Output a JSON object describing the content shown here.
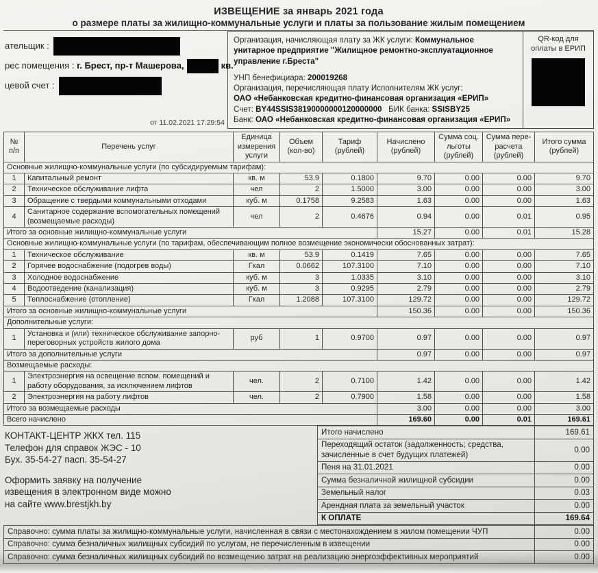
{
  "header": {
    "title_line1": "ИЗВЕЩЕНИЕ за январь 2021 года",
    "title_line2": "о размере платы за  жилищно-коммунальные услуги и платы за пользование жилым помещением"
  },
  "payer": {
    "payer_label": "ательщик :",
    "address_label": "рес помещения : ",
    "address_value": "г. Брест, пр-т Машерова,",
    "address_suffix": "кв.",
    "account_label": "цевой счет :",
    "timestamp": "от 11.02.2021 17:29:54"
  },
  "organization": {
    "line1_label": "Организация, начисляющая плату за ЖК услуги: ",
    "line1_value": "Коммунальное унитарное предприятие \"Жилищное ремонтно-эксплуатационное управление г.Бреста\"",
    "unp_label": "УНП бенефициара: ",
    "unp_value": "200019268",
    "transfer_label": "Организация, перечисляющая плату Исполнителям ЖК услуг:",
    "transfer_value": "ОАО «Небанковская кредитно-финансовая организация «ЕРИП»",
    "account_label": "Счет: ",
    "account_value": "BY44SSIS38190000000120000000",
    "bik_label": "БИК банка: ",
    "bik_value": "SSISBY25",
    "bank_label": "Банк: ",
    "bank_value": "ОАО «Небанковская кредитно-финансовая организация «ЕРИП»"
  },
  "qr": {
    "label": "QR-код для оплаты в ЕРИП"
  },
  "table": {
    "columns": [
      "№ п/п",
      "Перечень услуг",
      "Единица измерения услуги",
      "Объем (кол-во)",
      "Тариф (рублей)",
      "Начислено (рублей)",
      "Сумма соц. льготы (рублей)",
      "Сумма пере- расчета (рублей)",
      "Итого сумма (рублей)"
    ],
    "sections": [
      {
        "header": "Основные жилищно-коммунальные услуги (по субсидируемым тарифам):",
        "rows": [
          {
            "num": "1",
            "service": "Капитальный ремонт",
            "unit": "кв. м",
            "qty": "53.9",
            "tariff": "0.1800",
            "accrued": "9.70",
            "social": "0.00",
            "recalc": "0.00",
            "total": "9.70"
          },
          {
            "num": "2",
            "service": "Техническое обслуживание лифта",
            "unit": "чел",
            "qty": "2",
            "tariff": "1.5000",
            "accrued": "3.00",
            "social": "0.00",
            "recalc": "0.00",
            "total": "3.00"
          },
          {
            "num": "3",
            "service": "Обращение с твердыми коммунальными отходами",
            "unit": "куб. м",
            "qty": "0.1758",
            "tariff": "9.2583",
            "accrued": "1.63",
            "social": "0.00",
            "recalc": "0.00",
            "total": "1.63"
          },
          {
            "num": "4",
            "service": "Санитарное содержание вспомогательных помещений (возмещаемые расходы)",
            "unit": "чел",
            "qty": "2",
            "tariff": "0.4676",
            "accrued": "0.94",
            "social": "0.00",
            "recalc": "0.01",
            "total": "0.95"
          }
        ],
        "total_label": "Итого за основные жилищно-коммунальные услуги",
        "totals": [
          "15.27",
          "0.00",
          "0.01",
          "15.28"
        ]
      },
      {
        "header": "Основные жилищно-коммунальные услуги (по тарифам, обеспечивающим полное возмещение экономически обоснованных затрат):",
        "rows": [
          {
            "num": "1",
            "service": "Техническое обслуживание",
            "unit": "кв. м",
            "qty": "53.9",
            "tariff": "0.1419",
            "accrued": "7.65",
            "social": "0.00",
            "recalc": "0.00",
            "total": "7.65"
          },
          {
            "num": "2",
            "service": "Горячее водоснабжение (подогрев воды)",
            "unit": "Гкал",
            "qty": "0.0662",
            "tariff": "107.3100",
            "accrued": "7.10",
            "social": "0.00",
            "recalc": "0.00",
            "total": "7.10"
          },
          {
            "num": "3",
            "service": "Холодное водоснабжение",
            "unit": "куб. м",
            "qty": "3",
            "tariff": "1.0335",
            "accrued": "3.10",
            "social": "0.00",
            "recalc": "0.00",
            "total": "3.10"
          },
          {
            "num": "4",
            "service": "Водоотведение (канализация)",
            "unit": "куб. м",
            "qty": "3",
            "tariff": "0.9295",
            "accrued": "2.79",
            "social": "0.00",
            "recalc": "0.00",
            "total": "2.79"
          },
          {
            "num": "5",
            "service": "Теплоснабжение (отопление)",
            "unit": "Гкал",
            "qty": "1.2088",
            "tariff": "107.3100",
            "accrued": "129.72",
            "social": "0.00",
            "recalc": "0.00",
            "total": "129.72"
          }
        ],
        "total_label": "Итого за основные жилищно-коммунальные услуги",
        "totals": [
          "150.36",
          "0.00",
          "0.00",
          "150.36"
        ]
      },
      {
        "header": "Дополнительные услуги:",
        "rows": [
          {
            "num": "1",
            "service": "Установка и (или) техническое обслуживание запорно-переговорных устройств жилого дома",
            "unit": "руб",
            "qty": "1",
            "tariff": "0.9700",
            "accrued": "0.97",
            "social": "0.00",
            "recalc": "0.00",
            "total": "0.97"
          }
        ],
        "total_label": "Итого за дополнительные услуги",
        "totals": [
          "0.97",
          "0.00",
          "0.00",
          "0.97"
        ]
      },
      {
        "header": "Возмещаемые расходы:",
        "rows": [
          {
            "num": "1",
            "service": "Электроэнергия на освещение вспом. помещений и работу оборудования, за исключением лифтов",
            "unit": "чел.",
            "qty": "2",
            "tariff": "0.7100",
            "accrued": "1.42",
            "social": "0.00",
            "recalc": "0.00",
            "total": "1.42"
          },
          {
            "num": "2",
            "service": "Электроэнергия на работу лифтов",
            "unit": "чел.",
            "qty": "2",
            "tariff": "0.7900",
            "accrued": "1.58",
            "social": "0.00",
            "recalc": "0.00",
            "total": "1.58"
          }
        ],
        "total_label": "Итого за возмещаемые расходы",
        "totals": [
          "3.00",
          "0.00",
          "0.00",
          "3.00"
        ]
      }
    ],
    "grand_total": {
      "label": "Всего начислено",
      "values": [
        "169.60",
        "0.00",
        "0.01",
        "169.61"
      ]
    }
  },
  "contact": {
    "lines": [
      "КОНТАКТ-ЦЕНТР ЖКХ тел. 115",
      "Телефон для справок ЖЭС - 10",
      "Бух. 35-54-27 пасп. 35-54-27",
      "",
      "Оформить заявку на получение",
      "извещения в электронном виде можно",
      "на сайте www.brestjkh.by"
    ]
  },
  "summary": {
    "rows": [
      {
        "label": "Итого начислено",
        "value": "169.61",
        "bold": false
      },
      {
        "label": "Переходящий остаток (задолженность; средства, зачисленные в счет будущих платежей)",
        "value": "0.00",
        "bold": false
      },
      {
        "label": "Пеня на 31.01.2021",
        "value": "0.00",
        "bold": false
      },
      {
        "label": "Сумма безналичной жилищной субсидии",
        "value": "0.00",
        "bold": false
      },
      {
        "label": "Земельный налог",
        "value": "0.03",
        "bold": false
      },
      {
        "label": "Арендная плата за земельный участок",
        "value": "0.00",
        "bold": false
      },
      {
        "label": "К ОПЛАТЕ",
        "value": "169.64",
        "bold": true
      }
    ]
  },
  "reference": {
    "rows": [
      {
        "label": "Справочно: сумма платы за жилищно-коммунальные услуги, начисленная в связи с местонахождением в жилом помещении ЧУП",
        "value": "0.00"
      },
      {
        "label": "Справочно: сумма безналичных жилищных субсидий по услугам, не перечисленным в извещении",
        "value": "0.00"
      },
      {
        "label": "Справочно: сумма безналичных жилищных субсидий по возмещению затрат на реализацию энергоэффективных мероприятий",
        "value": "0.00"
      }
    ]
  }
}
